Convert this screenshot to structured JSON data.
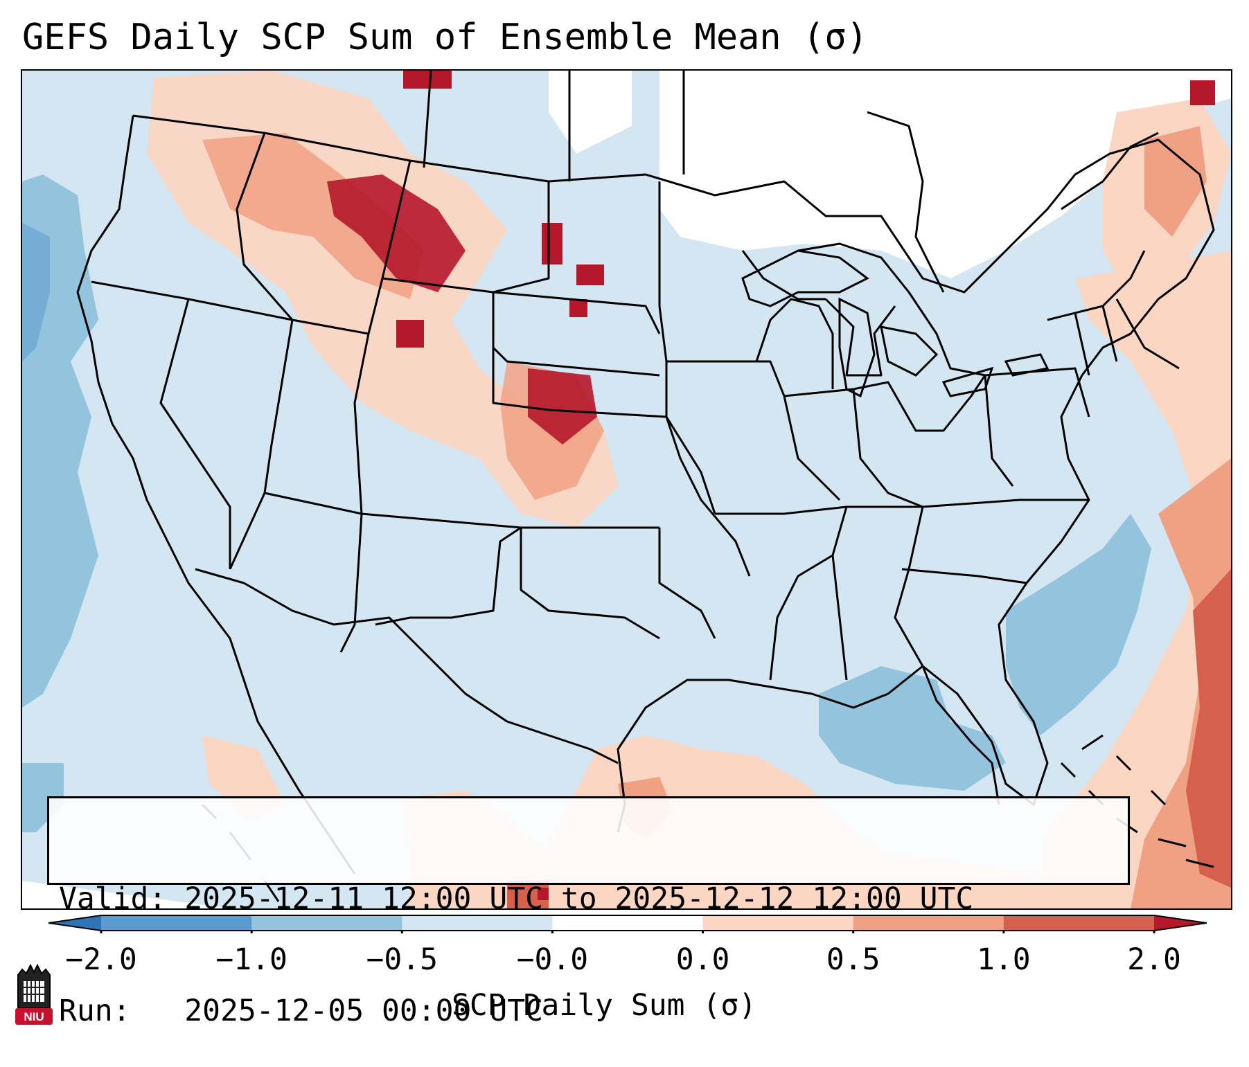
{
  "header": {
    "title": "GEFS Daily SCP Sum of Ensemble Mean (σ)"
  },
  "info_box": {
    "valid_line": "Valid: 2025-12-11 12:00 UTC to 2025-12-12 12:00 UTC",
    "run_line": "Run:   2025-12-05 00:00 UTC"
  },
  "colorbar": {
    "label": "SCP Daily Sum (σ)",
    "ticks": [
      "−2.0",
      "−1.0",
      "−0.5",
      "−0.0",
      "0.0",
      "0.5",
      "1.0",
      "2.0"
    ],
    "bins": [
      {
        "range": "< -2.0",
        "color": "#2f74b5"
      },
      {
        "range": "-2.0 to -1.0",
        "color": "#5b9bce"
      },
      {
        "range": "-1.0 to -0.5",
        "color": "#94c3de"
      },
      {
        "range": "-0.5 to -0.0",
        "color": "#d3e6f1"
      },
      {
        "range": "-0.0 to 0.0",
        "color": "#ffffff"
      },
      {
        "range": "0.0 to 0.5",
        "color": "#fbd6c2"
      },
      {
        "range": "0.5 to 1.0",
        "color": "#f1a183"
      },
      {
        "range": "1.0 to 2.0",
        "color": "#d5604e"
      },
      {
        "range": "> 2.0",
        "color": "#b5172b"
      }
    ]
  },
  "logo": {
    "text": "NIU"
  },
  "colors": {
    "neg_strong": "#5b9bce",
    "neg_mid": "#94c3de",
    "neg_weak": "#d3e6f1",
    "pos_weak": "#fbd6c2",
    "pos_mid": "#f1a183",
    "pos_strong": "#d5604e",
    "pos_extreme": "#b5172b",
    "border": "#000000"
  }
}
